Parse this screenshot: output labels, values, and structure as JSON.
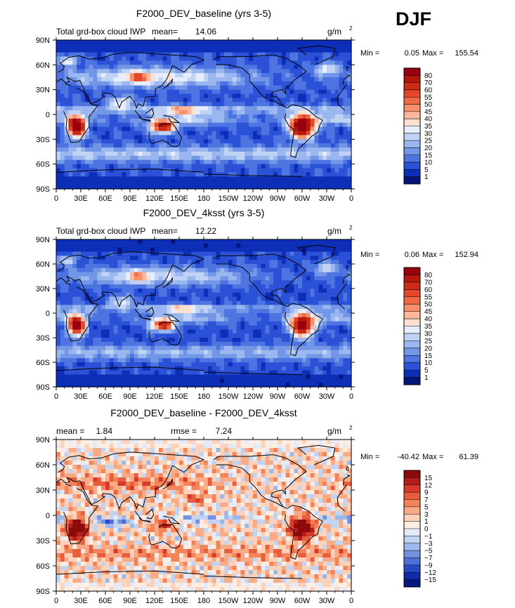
{
  "season": "DJF",
  "chart_data": [
    {
      "type": "heatmap",
      "title": "F2000_DEV_baseline (yrs 3-5)",
      "left_label": "Total grd-box cloud IWP",
      "stat_label": "mean=",
      "stat_value": "14.06",
      "units": "g/m",
      "units_exp": "2",
      "minmax": {
        "min_label": "Min =",
        "min": "0.05",
        "max_label": "Max =",
        "max": "155.54"
      },
      "ylabels": [
        "90N",
        "60N",
        "30N",
        "0",
        "30S",
        "60S",
        "90S"
      ],
      "xlabels": [
        "0",
        "30E",
        "60E",
        "90E",
        "120E",
        "150E",
        "180",
        "150W",
        "120W",
        "90W",
        "60W",
        "30W",
        "0"
      ],
      "colorbar_labels": [
        "80",
        "70",
        "60",
        "55",
        "50",
        "45",
        "40",
        "35",
        "30",
        "25",
        "20",
        "15",
        "10",
        "5",
        "1"
      ],
      "colorbar_colors": [
        "#99000d",
        "#b3170e",
        "#cb2b17",
        "#e3482a",
        "#f26a45",
        "#f8906c",
        "#fbb89a",
        "#fde0cf",
        "#e6eefb",
        "#c0d3f5",
        "#9ab8ef",
        "#7397e6",
        "#4d74e0",
        "#2a51d6",
        "#0d2fb8",
        "#04147a"
      ],
      "colorbar_bottom_color": "#04147a",
      "field_mode": "abs"
    },
    {
      "type": "heatmap",
      "title": "F2000_DEV_4ksst (yrs 3-5)",
      "left_label": "Total grd-box cloud IWP",
      "stat_label": "mean=",
      "stat_value": "12.22",
      "units": "g/m",
      "units_exp": "2",
      "minmax": {
        "min_label": "Min =",
        "min": "0.06",
        "max_label": "Max =",
        "max": "152.94"
      },
      "ylabels": [
        "90N",
        "60N",
        "30N",
        "0",
        "30S",
        "60S",
        "90S"
      ],
      "xlabels": [
        "0",
        "30E",
        "60E",
        "90E",
        "120E",
        "150E",
        "180",
        "150W",
        "120W",
        "90W",
        "60W",
        "30W",
        "0"
      ],
      "colorbar_labels": [
        "80",
        "70",
        "60",
        "55",
        "50",
        "45",
        "40",
        "35",
        "30",
        "25",
        "20",
        "15",
        "10",
        "5",
        "1"
      ],
      "colorbar_colors": [
        "#99000d",
        "#b3170e",
        "#cb2b17",
        "#e3482a",
        "#f26a45",
        "#f8906c",
        "#fbb89a",
        "#fde0cf",
        "#e6eefb",
        "#c0d3f5",
        "#9ab8ef",
        "#7397e6",
        "#4d74e0",
        "#2a51d6",
        "#0d2fb8",
        "#04147a"
      ],
      "field_mode": "abs2"
    },
    {
      "type": "heatmap",
      "title": "F2000_DEV_baseline - F2000_DEV_4ksst",
      "left_label": "mean =",
      "stat_value_left": "1.84",
      "stat_label": "rmse =",
      "stat_value": "7.24",
      "units": "g/m",
      "units_exp": "2",
      "minmax": {
        "min_label": "Min =",
        "min": "-40.42",
        "max_label": "Max =",
        "max": "61.39"
      },
      "ylabels": [
        "90N",
        "60N",
        "30N",
        "0",
        "30S",
        "60S",
        "90S"
      ],
      "xlabels": [
        "0",
        "30E",
        "60E",
        "90E",
        "120E",
        "150E",
        "180",
        "150W",
        "120W",
        "90W",
        "60W",
        "30W",
        "0"
      ],
      "colorbar_labels": [
        "15",
        "12",
        "9",
        "7",
        "5",
        "3",
        "1",
        "0",
        "−1",
        "−3",
        "−5",
        "−7",
        "−9",
        "−12",
        "−15"
      ],
      "colorbar_colors": [
        "#8b0a0a",
        "#b51d1d",
        "#d73a2a",
        "#e85d3d",
        "#f38359",
        "#f9ab85",
        "#fcd3ba",
        "#fdeee4",
        "#e3ebfa",
        "#c3d4f3",
        "#9cb7ea",
        "#7393e1",
        "#4c6fd8",
        "#2749c7",
        "#0f2ba8",
        "#06167d"
      ],
      "field_mode": "diff"
    }
  ]
}
